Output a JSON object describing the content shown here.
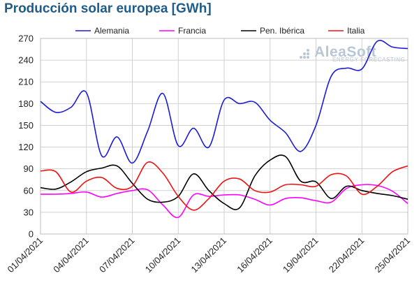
{
  "title": "Producción solar europea [GWh]",
  "logo": {
    "name": "AleaSoft",
    "tagline": "ENERGY FORECASTING"
  },
  "chart_data": {
    "type": "line",
    "title": "Producción solar europea [GWh]",
    "xlabel": "",
    "ylabel": "",
    "ylim": [
      0,
      270
    ],
    "yticks": [
      0,
      30,
      60,
      90,
      120,
      150,
      180,
      210,
      240,
      270
    ],
    "grid": true,
    "legend_position": "top",
    "x": [
      "01/04/2021",
      "02/04/2021",
      "03/04/2021",
      "04/04/2021",
      "05/04/2021",
      "06/04/2021",
      "07/04/2021",
      "08/04/2021",
      "09/04/2021",
      "10/04/2021",
      "11/04/2021",
      "12/04/2021",
      "13/04/2021",
      "14/04/2021",
      "15/04/2021",
      "16/04/2021",
      "17/04/2021",
      "18/04/2021",
      "19/04/2021",
      "20/04/2021",
      "21/04/2021",
      "22/04/2021",
      "23/04/2021",
      "24/04/2021",
      "25/04/2021"
    ],
    "xtick_labels": [
      "01/04/2021",
      "04/04/2021",
      "07/04/2021",
      "10/04/2021",
      "13/04/2021",
      "16/04/2021",
      "19/04/2021",
      "22/04/2021",
      "25/04/2021"
    ],
    "xtick_indices": [
      0,
      3,
      6,
      9,
      12,
      15,
      18,
      21,
      24
    ],
    "series": [
      {
        "name": "Alemania",
        "color": "#1a1adc",
        "values": [
          183,
          168,
          175,
          195,
          108,
          134,
          98,
          142,
          194,
          122,
          146,
          120,
          185,
          180,
          182,
          157,
          140,
          114,
          150,
          218,
          229,
          228,
          266,
          258,
          256
        ]
      },
      {
        "name": "Francia",
        "color": "#ff00ff",
        "values": [
          55,
          55,
          56,
          58,
          51,
          56,
          60,
          61,
          40,
          23,
          54,
          52,
          54,
          54,
          48,
          40,
          49,
          50,
          46,
          44,
          63,
          68,
          67,
          59,
          42
        ]
      },
      {
        "name": "Pen. Ibérica",
        "color": "#000000",
        "values": [
          64,
          62,
          72,
          86,
          91,
          94,
          70,
          48,
          44,
          52,
          83,
          60,
          42,
          36,
          80,
          102,
          107,
          73,
          72,
          49,
          66,
          60,
          56,
          53,
          48
        ]
      },
      {
        "name": "Italia",
        "color": "#ee1111",
        "values": [
          87,
          86,
          58,
          73,
          78,
          63,
          66,
          99,
          84,
          52,
          33,
          49,
          73,
          76,
          60,
          58,
          68,
          68,
          66,
          82,
          80,
          55,
          66,
          86,
          94
        ]
      }
    ]
  }
}
